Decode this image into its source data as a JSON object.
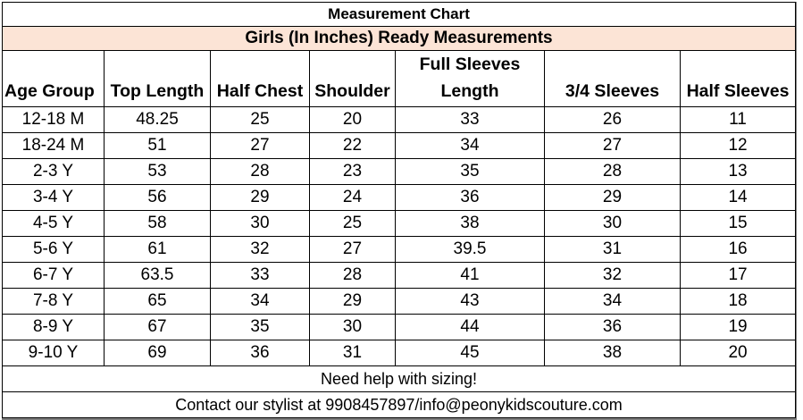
{
  "title": "Measurement Chart",
  "subtitle": "Girls (In Inches) Ready Measurements",
  "subtitle_bg": "#fce4d6",
  "headers": {
    "age_group": "Age Group",
    "top_length": "Top Length",
    "half_chest": "Half Chest",
    "shoulder": "Shoulder",
    "full_sleeves_line1": "Full Sleeves",
    "full_sleeves_line2": "Length",
    "three_quarter_sleeves": "3/4 Sleeves",
    "half_sleeves": "Half Sleeves"
  },
  "rows": [
    [
      "12-18 M",
      "48.25",
      "25",
      "20",
      "33",
      "26",
      "11"
    ],
    [
      "18-24 M",
      "51",
      "27",
      "22",
      "34",
      "27",
      "12"
    ],
    [
      "2-3 Y",
      "53",
      "28",
      "23",
      "35",
      "28",
      "13"
    ],
    [
      "3-4 Y",
      "56",
      "29",
      "24",
      "36",
      "29",
      "14"
    ],
    [
      "4-5 Y",
      "58",
      "30",
      "25",
      "38",
      "30",
      "15"
    ],
    [
      "5-6 Y",
      "61",
      "32",
      "27",
      "39.5",
      "31",
      "16"
    ],
    [
      "6-7 Y",
      "63.5",
      "33",
      "28",
      "41",
      "32",
      "17"
    ],
    [
      "7-8 Y",
      "65",
      "34",
      "29",
      "43",
      "34",
      "18"
    ],
    [
      "8-9 Y",
      "67",
      "35",
      "30",
      "44",
      "36",
      "19"
    ],
    [
      "9-10 Y",
      "69",
      "36",
      "31",
      "45",
      "38",
      "20"
    ]
  ],
  "footer": {
    "help": "Need help with sizing!",
    "contact": "Contact our stylist at 9908457897/info@peonykidscouture.com"
  }
}
